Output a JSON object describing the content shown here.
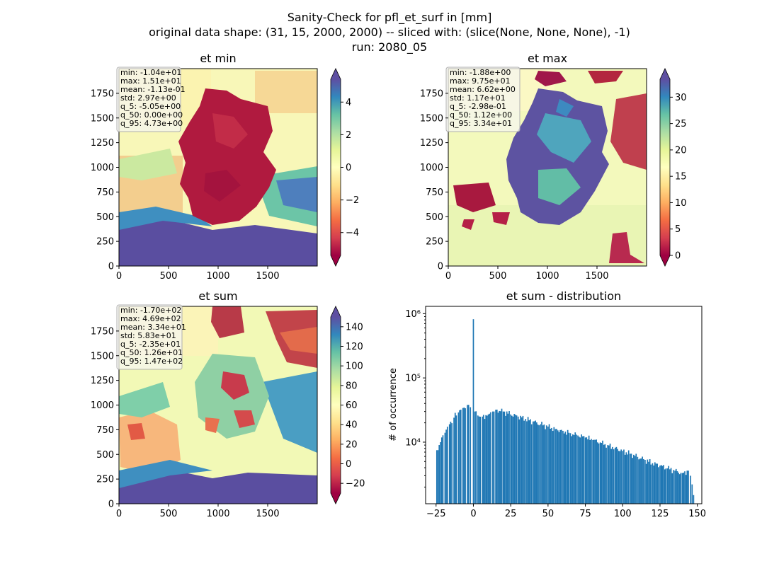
{
  "suptitle": [
    "Sanity-Check for pfl_et_surf in [mm]",
    "original data shape: (31, 15, 2000, 2000) -- sliced with: (slice(None, None, None), -1)",
    "run: 2080_05"
  ],
  "colors": {
    "hist_bar": "#1f77b4",
    "stat_box_bg": "#f5f5f0",
    "stat_box_edge": "#b0b0b0"
  },
  "colormap": "Spectral",
  "chart_data": [
    {
      "type": "heatmap",
      "title": "et min",
      "xlim": [
        0,
        2000
      ],
      "ylim": [
        0,
        2000
      ],
      "xticks": [
        0,
        500,
        1000,
        1500
      ],
      "yticks": [
        0,
        250,
        500,
        750,
        1000,
        1250,
        1500,
        1750
      ],
      "colorbar": {
        "min": -5.4,
        "max": 5.4,
        "ticks": [
          -4,
          -2,
          0,
          2,
          4
        ],
        "extend": "both"
      },
      "stats": [
        "min: -1.04e+01",
        "max: 1.51e+01",
        "mean: -1.13e-01",
        "std: 2.97e+00",
        "q_5: -5.05e+00",
        "q_50: 0.00e+00",
        "q_95: 4.73e+00"
      ]
    },
    {
      "type": "heatmap",
      "title": "et max",
      "xlim": [
        0,
        2000
      ],
      "ylim": [
        0,
        2000
      ],
      "xticks": [
        0,
        500,
        1000,
        1500
      ],
      "yticks": [
        0,
        250,
        500,
        750,
        1000,
        1250,
        1500,
        1750
      ],
      "colorbar": {
        "min": 0,
        "max": 33.4,
        "ticks": [
          0,
          5,
          10,
          15,
          20,
          25,
          30
        ],
        "extend": "both"
      },
      "stats": [
        "min: -1.88e+00",
        "max: 9.75e+01",
        "mean: 6.62e+00",
        "std: 1.17e+01",
        "q_5: -2.98e-01",
        "q_50: 1.12e+00",
        "q_95: 3.34e+01"
      ]
    },
    {
      "type": "heatmap",
      "title": "et sum",
      "xlim": [
        0,
        2000
      ],
      "ylim": [
        0,
        2000
      ],
      "xticks": [
        0,
        500,
        1000,
        1500
      ],
      "yticks": [
        0,
        250,
        500,
        750,
        1000,
        1250,
        1500,
        1750
      ],
      "colorbar": {
        "min": -30,
        "max": 150,
        "ticks": [
          -20,
          0,
          20,
          40,
          60,
          80,
          100,
          120,
          140
        ],
        "extend": "both"
      },
      "stats": [
        "min: -1.70e+02",
        "max: 4.69e+02",
        "mean: 3.34e+01",
        "std: 5.83e+01",
        "q_5: -2.35e+01",
        "q_50: 1.26e+01",
        "q_95: 1.47e+02"
      ]
    },
    {
      "type": "bar",
      "title": "et sum - distribution",
      "ylabel": "# of occurrence",
      "yscale": "log",
      "xlim": [
        -32,
        153
      ],
      "ylim": [
        1100,
        1300000
      ],
      "xticks": [
        -25,
        0,
        25,
        50,
        75,
        100,
        125,
        150
      ],
      "yticks": [
        {
          "value": 10000,
          "label": "10⁴"
        },
        {
          "value": 100000,
          "label": "10⁵"
        },
        {
          "value": 1000000,
          "label": "10⁶"
        }
      ],
      "bin_width": 0.8,
      "bins": [
        [
          -24.5,
          7500
        ],
        [
          -22,
          10000
        ],
        [
          -19,
          14000
        ],
        [
          -16,
          19000
        ],
        [
          -13,
          24000
        ],
        [
          -10,
          29000
        ],
        [
          -7,
          34000
        ],
        [
          -4,
          38000
        ],
        [
          -2,
          35000
        ],
        [
          0,
          820000
        ],
        [
          1,
          30000
        ],
        [
          3,
          26000
        ],
        [
          6,
          25000
        ],
        [
          10,
          27000
        ],
        [
          13,
          30000
        ],
        [
          15,
          32000
        ],
        [
          20,
          30000
        ],
        [
          25,
          27000
        ],
        [
          30,
          25000
        ],
        [
          35,
          23000
        ],
        [
          40,
          21000
        ],
        [
          45,
          19000
        ],
        [
          50,
          17500
        ],
        [
          55,
          16000
        ],
        [
          60,
          15000
        ],
        [
          65,
          13800
        ],
        [
          70,
          12700
        ],
        [
          75,
          11800
        ],
        [
          80,
          10800
        ],
        [
          85,
          9900
        ],
        [
          90,
          9000
        ],
        [
          95,
          8200
        ],
        [
          100,
          7300
        ],
        [
          105,
          6600
        ],
        [
          110,
          5900
        ],
        [
          115,
          5300
        ],
        [
          120,
          4700
        ],
        [
          125,
          4300
        ],
        [
          130,
          3900
        ],
        [
          135,
          3600
        ],
        [
          140,
          3300
        ],
        [
          144,
          3600
        ],
        [
          145.5,
          3000
        ],
        [
          146.5,
          2200
        ],
        [
          147.5,
          1500
        ]
      ]
    }
  ]
}
